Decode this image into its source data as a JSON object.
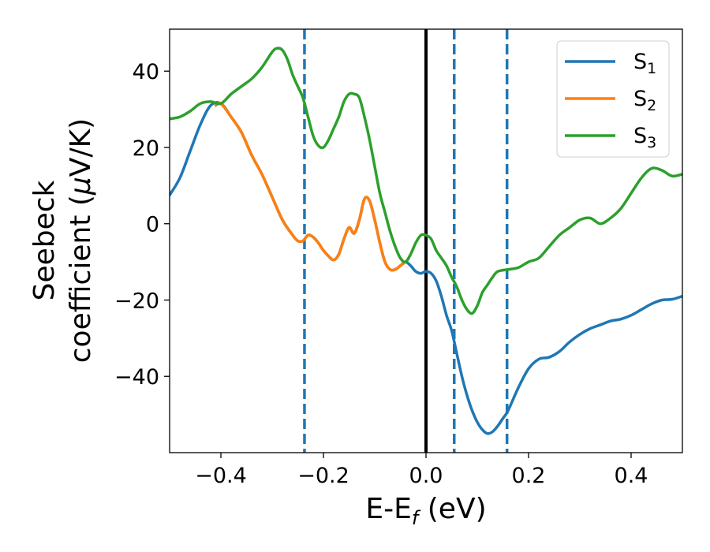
{
  "chart_data": {
    "type": "line",
    "xlabel": "E-E_f (eV)",
    "xlabel_parts": {
      "main": "E-E",
      "sub": "f",
      "tail": " (eV)"
    },
    "ylabel": [
      "Seebeck",
      "coefficient  (μV/K)"
    ],
    "ylabel_parts": {
      "line1": "Seebeck",
      "line2_pre": "coefficient  (",
      "line2_mu": "μ",
      "line2_post": "V/K)"
    },
    "xlim": [
      -0.5,
      0.5
    ],
    "ylim": [
      -60,
      51
    ],
    "xticks": [
      -0.4,
      -0.2,
      0.0,
      0.2,
      0.4
    ],
    "xtick_labels": [
      "−0.4",
      "−0.2",
      "0.0",
      "0.2",
      "0.4"
    ],
    "yticks": [
      40,
      20,
      0,
      -20,
      -40
    ],
    "ytick_labels": [
      "40",
      "20",
      "0",
      "−20",
      "−40"
    ],
    "grid": false,
    "legend_position": "top-right",
    "legend": [
      {
        "main": "S",
        "sub": "1"
      },
      {
        "main": "S",
        "sub": "2"
      },
      {
        "main": "S",
        "sub": "3"
      }
    ],
    "colors": {
      "S1": "#1f77b4",
      "S2": "#ff7f0e",
      "S3": "#2ca02c",
      "zero_line": "#000000",
      "dashed": "#1f77b4"
    },
    "vertical_lines": {
      "solid": [
        0.0
      ],
      "dashed": [
        -0.237,
        0.055,
        0.158
      ]
    },
    "series": [
      {
        "name": "S1",
        "color": "#1f77b4",
        "points": [
          [
            -0.5,
            7.5
          ],
          [
            -0.48,
            12
          ],
          [
            -0.46,
            19
          ],
          [
            -0.44,
            26
          ],
          [
            -0.42,
            31
          ],
          [
            -0.4,
            31.5
          ],
          [
            -0.38,
            28
          ],
          [
            -0.36,
            24
          ],
          [
            -0.34,
            18
          ],
          [
            -0.32,
            13
          ],
          [
            -0.3,
            7
          ],
          [
            -0.28,
            1
          ],
          [
            -0.26,
            -3
          ],
          [
            -0.25,
            -4.5
          ],
          [
            -0.24,
            -4.5
          ],
          [
            -0.23,
            -3
          ],
          [
            -0.22,
            -3.5
          ],
          [
            -0.21,
            -5
          ],
          [
            -0.2,
            -7
          ],
          [
            -0.19,
            -8.5
          ],
          [
            -0.18,
            -9.5
          ],
          [
            -0.17,
            -8
          ],
          [
            -0.16,
            -4
          ],
          [
            -0.15,
            -1
          ],
          [
            -0.14,
            -2.5
          ],
          [
            -0.13,
            1
          ],
          [
            -0.12,
            6.5
          ],
          [
            -0.11,
            6
          ],
          [
            -0.1,
            1
          ],
          [
            -0.09,
            -5
          ],
          [
            -0.08,
            -10
          ],
          [
            -0.07,
            -12
          ],
          [
            -0.06,
            -12
          ],
          [
            -0.05,
            -11
          ],
          [
            -0.04,
            -10
          ],
          [
            -0.03,
            -11
          ],
          [
            -0.02,
            -12.5
          ],
          [
            -0.01,
            -13
          ],
          [
            0.0,
            -12.5
          ],
          [
            0.01,
            -13
          ],
          [
            0.02,
            -15
          ],
          [
            0.03,
            -19
          ],
          [
            0.04,
            -24
          ],
          [
            0.05,
            -28
          ],
          [
            0.06,
            -34
          ],
          [
            0.07,
            -40
          ],
          [
            0.08,
            -45
          ],
          [
            0.09,
            -49
          ],
          [
            0.1,
            -52
          ],
          [
            0.11,
            -54
          ],
          [
            0.12,
            -55
          ],
          [
            0.13,
            -54.5
          ],
          [
            0.14,
            -53
          ],
          [
            0.15,
            -51
          ],
          [
            0.16,
            -49
          ],
          [
            0.18,
            -43
          ],
          [
            0.2,
            -38
          ],
          [
            0.22,
            -35.5
          ],
          [
            0.24,
            -35
          ],
          [
            0.26,
            -33.5
          ],
          [
            0.28,
            -31
          ],
          [
            0.3,
            -29
          ],
          [
            0.32,
            -27.5
          ],
          [
            0.34,
            -26.5
          ],
          [
            0.36,
            -25.5
          ],
          [
            0.38,
            -25
          ],
          [
            0.4,
            -24
          ],
          [
            0.42,
            -22.5
          ],
          [
            0.44,
            -21
          ],
          [
            0.46,
            -20
          ],
          [
            0.48,
            -19.8
          ],
          [
            0.5,
            -19
          ]
        ]
      },
      {
        "name": "S2",
        "color": "#ff7f0e",
        "points": [
          [
            -0.41,
            31
          ],
          [
            -0.4,
            31.5
          ],
          [
            -0.38,
            28
          ],
          [
            -0.36,
            24
          ],
          [
            -0.34,
            18
          ],
          [
            -0.32,
            13
          ],
          [
            -0.3,
            7
          ],
          [
            -0.28,
            1
          ],
          [
            -0.26,
            -3
          ],
          [
            -0.25,
            -4.5
          ],
          [
            -0.24,
            -4.5
          ],
          [
            -0.23,
            -3
          ],
          [
            -0.22,
            -3.5
          ],
          [
            -0.21,
            -5
          ],
          [
            -0.2,
            -7
          ],
          [
            -0.19,
            -8.5
          ],
          [
            -0.18,
            -9.5
          ],
          [
            -0.17,
            -8
          ],
          [
            -0.16,
            -4
          ],
          [
            -0.15,
            -1
          ],
          [
            -0.14,
            -2.5
          ],
          [
            -0.13,
            1
          ],
          [
            -0.12,
            6.5
          ],
          [
            -0.11,
            6
          ],
          [
            -0.1,
            1
          ],
          [
            -0.09,
            -5
          ],
          [
            -0.08,
            -10
          ],
          [
            -0.07,
            -12
          ],
          [
            -0.06,
            -12
          ],
          [
            -0.05,
            -11
          ],
          [
            -0.04,
            -10
          ]
        ]
      },
      {
        "name": "S3",
        "color": "#2ca02c",
        "points": [
          [
            -0.5,
            27.5
          ],
          [
            -0.48,
            28
          ],
          [
            -0.46,
            29.5
          ],
          [
            -0.44,
            31.5
          ],
          [
            -0.42,
            32
          ],
          [
            -0.4,
            31.5
          ],
          [
            -0.38,
            34
          ],
          [
            -0.36,
            36
          ],
          [
            -0.34,
            38
          ],
          [
            -0.32,
            41
          ],
          [
            -0.3,
            45
          ],
          [
            -0.29,
            46
          ],
          [
            -0.28,
            45.5
          ],
          [
            -0.27,
            43
          ],
          [
            -0.26,
            39
          ],
          [
            -0.25,
            36
          ],
          [
            -0.24,
            33
          ],
          [
            -0.23,
            28
          ],
          [
            -0.22,
            23
          ],
          [
            -0.21,
            20.5
          ],
          [
            -0.2,
            20
          ],
          [
            -0.19,
            22
          ],
          [
            -0.18,
            25
          ],
          [
            -0.17,
            28
          ],
          [
            -0.16,
            32
          ],
          [
            -0.15,
            34
          ],
          [
            -0.14,
            34
          ],
          [
            -0.13,
            33
          ],
          [
            -0.12,
            28
          ],
          [
            -0.11,
            22
          ],
          [
            -0.1,
            15
          ],
          [
            -0.09,
            8
          ],
          [
            -0.08,
            3
          ],
          [
            -0.07,
            -2
          ],
          [
            -0.06,
            -6
          ],
          [
            -0.05,
            -9
          ],
          [
            -0.04,
            -10
          ],
          [
            -0.03,
            -8
          ],
          [
            -0.02,
            -5
          ],
          [
            -0.01,
            -3
          ],
          [
            0.0,
            -3
          ],
          [
            0.01,
            -4
          ],
          [
            0.02,
            -7
          ],
          [
            0.03,
            -9
          ],
          [
            0.04,
            -11
          ],
          [
            0.05,
            -14
          ],
          [
            0.06,
            -16.5
          ],
          [
            0.07,
            -20
          ],
          [
            0.08,
            -22.5
          ],
          [
            0.09,
            -23.5
          ],
          [
            0.1,
            -21.5
          ],
          [
            0.11,
            -18
          ],
          [
            0.12,
            -16
          ],
          [
            0.13,
            -14
          ],
          [
            0.14,
            -12.5
          ],
          [
            0.16,
            -12
          ],
          [
            0.18,
            -11.5
          ],
          [
            0.2,
            -10
          ],
          [
            0.22,
            -9
          ],
          [
            0.24,
            -6
          ],
          [
            0.26,
            -3
          ],
          [
            0.28,
            -1
          ],
          [
            0.3,
            1
          ],
          [
            0.32,
            1.5
          ],
          [
            0.34,
            0
          ],
          [
            0.36,
            1.5
          ],
          [
            0.38,
            4
          ],
          [
            0.4,
            8
          ],
          [
            0.42,
            12
          ],
          [
            0.44,
            14.5
          ],
          [
            0.46,
            14
          ],
          [
            0.48,
            12.5
          ],
          [
            0.5,
            13
          ]
        ]
      }
    ]
  }
}
